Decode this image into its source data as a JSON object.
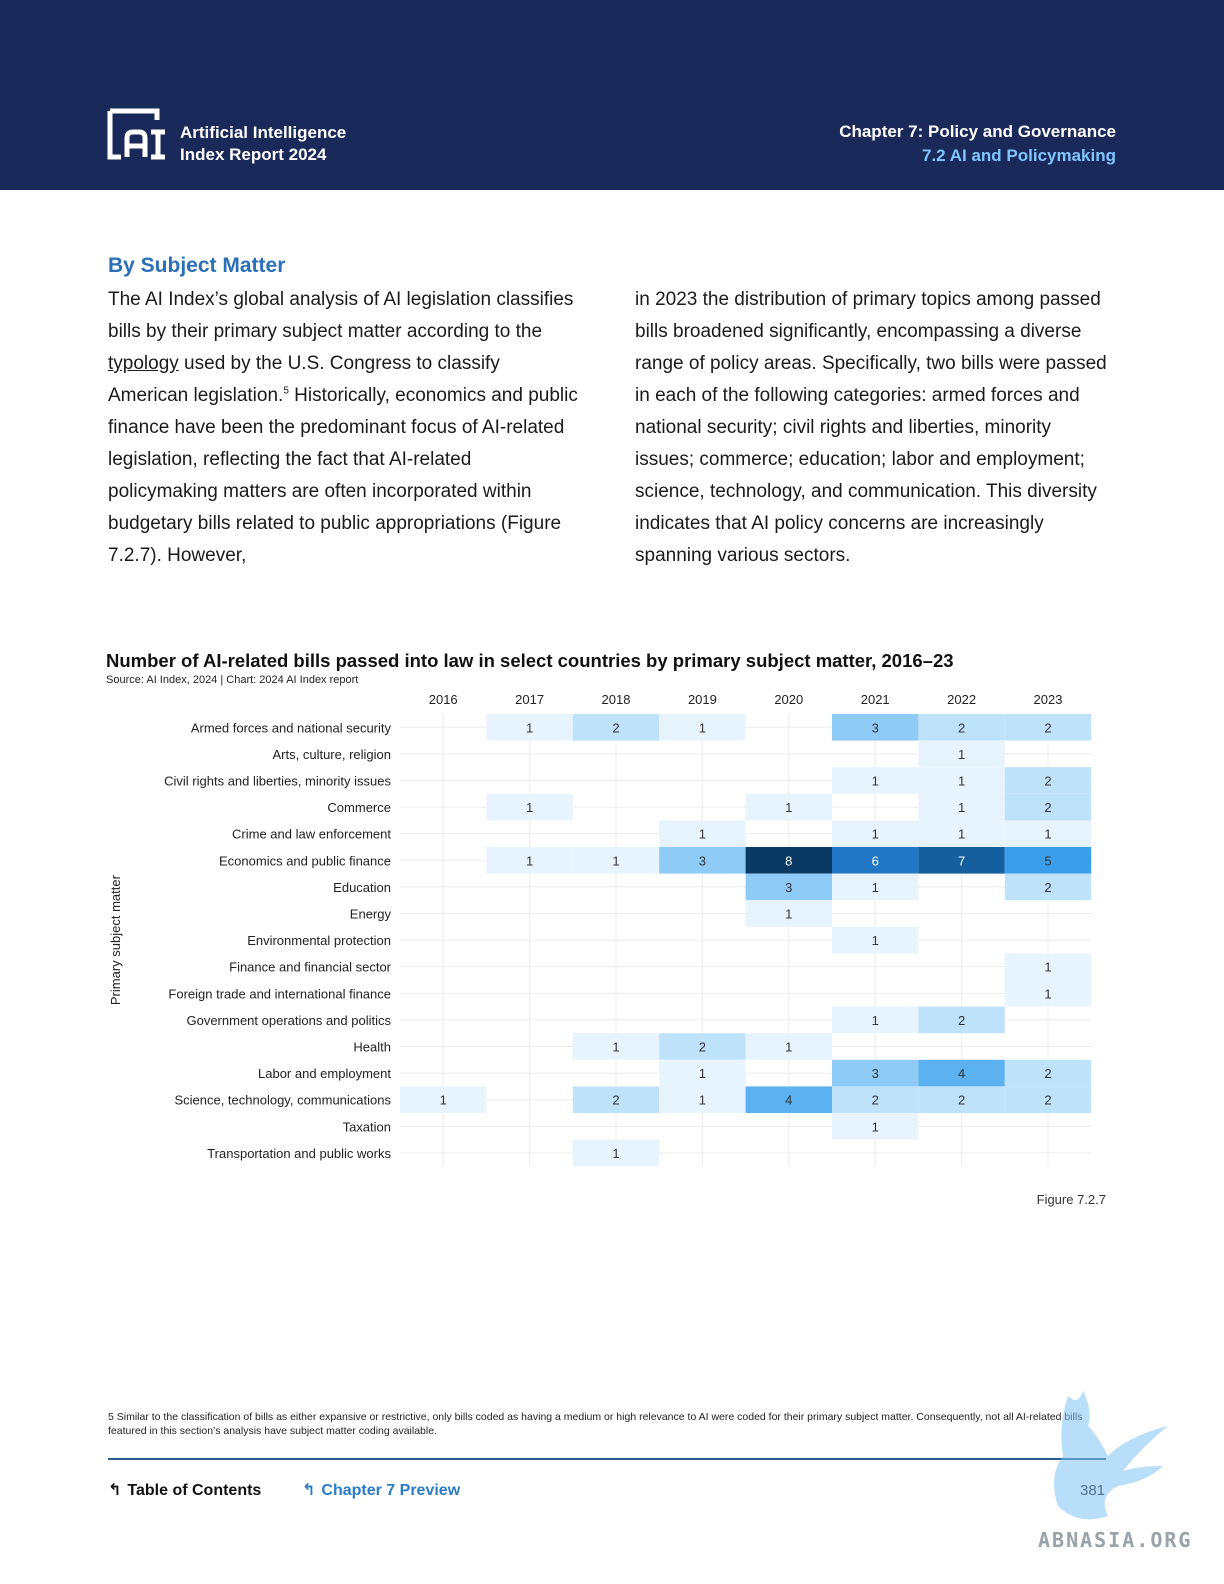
{
  "header": {
    "logo_line1": "Artificial Intelligence",
    "logo_line2": "Index Report 2024",
    "chapter": "Chapter 7: Policy and Governance",
    "section": "7.2 AI and Policymaking"
  },
  "section": {
    "heading": "By Subject Matter",
    "left_text_1": "The AI Index’s global analysis of AI legislation classifies bills by their primary subject matter according to the ",
    "left_link": "typology",
    "left_text_2": " used by the U.S. Congress to classify American legislation.",
    "left_footnote_ref": "5",
    "left_text_3": " Historically, economics and public finance have been the predominant focus of AI-related legislation, reflecting the fact that AI-related policymaking matters are often incorporated within budgetary bills related to public appropriations (Figure 7.2.7). However,",
    "right_text": "in 2023 the distribution of primary topics among passed bills broadened significantly, encompassing a diverse range of policy areas. Specifically, two bills were passed in each of the following categories: armed forces and national security; civil rights and liberties, minority issues; commerce; education; labor and employment; science, technology, and communication. This diversity indicates that AI policy concerns are increasingly spanning various sectors."
  },
  "chart_data": {
    "type": "heatmap",
    "title": "Number of AI-related bills passed into law in select countries by primary subject matter, 2016–23",
    "source": "Source: AI Index, 2024 | Chart: 2024 AI Index report",
    "ylabel": "Primary subject matter",
    "x": [
      "2016",
      "2017",
      "2018",
      "2019",
      "2020",
      "2021",
      "2022",
      "2023"
    ],
    "y": [
      "Armed forces and national security",
      "Arts, culture, religion",
      "Civil rights and liberties, minority issues",
      "Commerce",
      "Crime and law enforcement",
      "Economics and public finance",
      "Education",
      "Energy",
      "Environmental protection",
      "Finance and financial sector",
      "Foreign trade and international finance",
      "Government operations and politics",
      "Health",
      "Labor and employment",
      "Science, technology, communications",
      "Taxation",
      "Transportation and public works"
    ],
    "values": [
      [
        null,
        1,
        2,
        1,
        null,
        3,
        2,
        2
      ],
      [
        null,
        null,
        null,
        null,
        null,
        null,
        1,
        null
      ],
      [
        null,
        null,
        null,
        null,
        null,
        1,
        1,
        2
      ],
      [
        null,
        1,
        null,
        null,
        1,
        null,
        1,
        2
      ],
      [
        null,
        null,
        null,
        1,
        null,
        1,
        1,
        1
      ],
      [
        null,
        1,
        1,
        3,
        8,
        6,
        7,
        5
      ],
      [
        null,
        null,
        null,
        null,
        3,
        1,
        null,
        2
      ],
      [
        null,
        null,
        null,
        null,
        1,
        null,
        null,
        null
      ],
      [
        null,
        null,
        null,
        null,
        null,
        1,
        null,
        null
      ],
      [
        null,
        null,
        null,
        null,
        null,
        null,
        null,
        1
      ],
      [
        null,
        null,
        null,
        null,
        null,
        null,
        null,
        1
      ],
      [
        null,
        null,
        null,
        null,
        null,
        1,
        2,
        null
      ],
      [
        null,
        null,
        1,
        2,
        1,
        null,
        null,
        null
      ],
      [
        null,
        null,
        null,
        1,
        null,
        3,
        4,
        2
      ],
      [
        1,
        null,
        2,
        1,
        4,
        2,
        2,
        2
      ],
      [
        null,
        null,
        null,
        null,
        null,
        1,
        null,
        null
      ],
      [
        null,
        null,
        1,
        null,
        null,
        null,
        null,
        null
      ]
    ],
    "colors": {
      "1": "#e8f4fd",
      "2": "#bfe2fb",
      "3": "#8fcbf7",
      "4": "#5cb2f0",
      "5": "#3a9eea",
      "6": "#2177c6",
      "7": "#155f9f",
      "8": "#0a3a64"
    },
    "figure_label": "Figure 7.2.7"
  },
  "footer": {
    "footnote": "5 Similar to the classification of bills as either expansive or restrictive, only bills coded as having a medium or high relevance to AI were coded for their primary subject matter. Consequently, not all AI-related bills featured in this section’s analysis have subject matter coding available.",
    "toc_label": "Table of Contents",
    "chapter_preview_label": "Chapter 7 Preview",
    "page_number": "381",
    "watermark_text": "ABNASIA.ORG"
  }
}
